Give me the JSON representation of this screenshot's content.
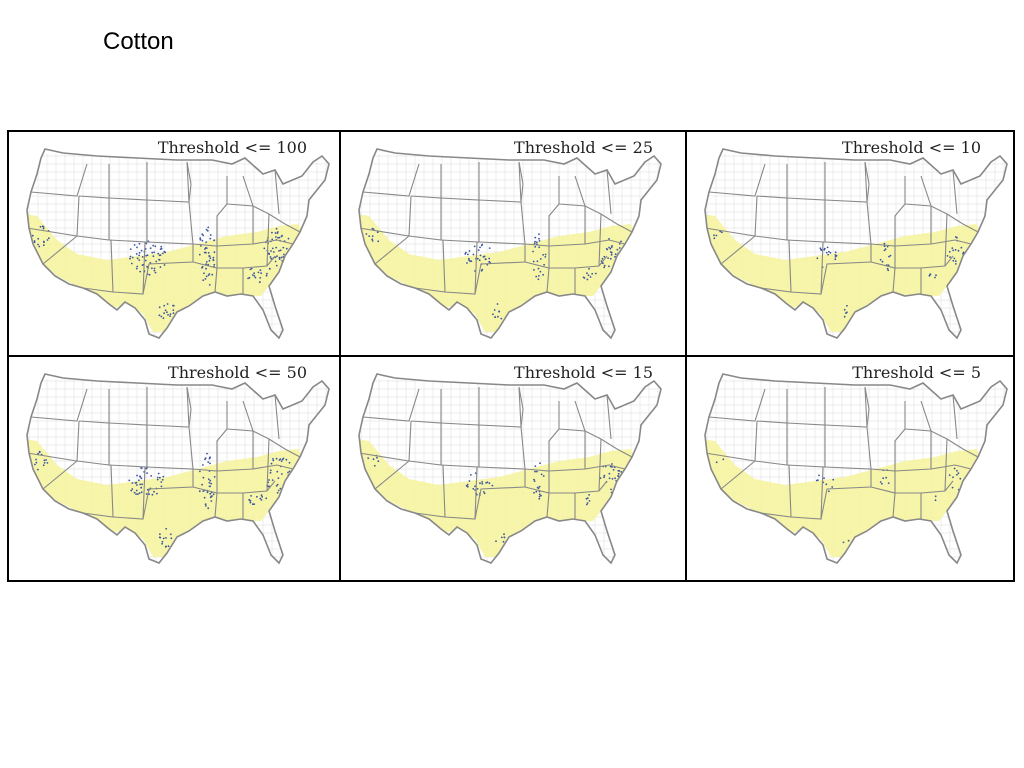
{
  "title": "Cotton",
  "colors": {
    "state_border": "#888888",
    "county_border": "#d4d4d4",
    "growing_region": "#f4f39a",
    "marker": "#3a55a0",
    "panel_border": "#000000"
  },
  "panels": [
    {
      "label": "Threshold <= 100",
      "threshold": 100,
      "marker_level": 1.0
    },
    {
      "label": "Threshold <= 25",
      "threshold": 25,
      "marker_level": 0.55
    },
    {
      "label": "Threshold <= 10",
      "threshold": 10,
      "marker_level": 0.3
    },
    {
      "label": "Threshold <= 50",
      "threshold": 50,
      "marker_level": 0.8
    },
    {
      "label": "Threshold <= 15",
      "threshold": 15,
      "marker_level": 0.4
    },
    {
      "label": "Threshold <= 5",
      "threshold": 5,
      "marker_level": 0.15
    }
  ]
}
